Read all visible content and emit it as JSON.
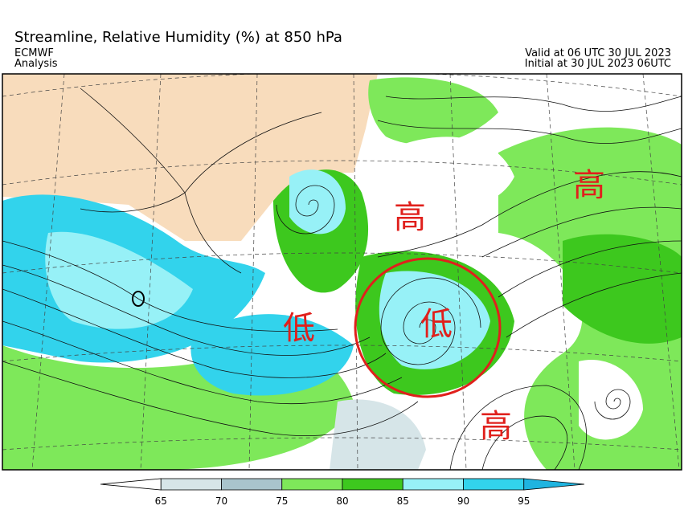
{
  "header": {
    "title": "Streamline, Relative Humidity (%) at 850 hPa",
    "source": "ECMWF",
    "product": "Analysis",
    "valid": "Valid at 06 UTC 30 JUL 2023",
    "initial": "Initial at 30 JUL 2023 06UTC"
  },
  "annotations": [
    {
      "label": "高"
    },
    {
      "label": "高"
    },
    {
      "label": "高"
    },
    {
      "label": "低"
    },
    {
      "label": "低"
    }
  ],
  "colorbar": {
    "ticks": [
      65,
      70,
      75,
      80,
      85,
      90,
      95
    ],
    "colors": [
      "#ffffff",
      "#d6e5e8",
      "#a9c4cc",
      "#7ee85a",
      "#3dc81e",
      "#97f1f7",
      "#32d3ec",
      "#1fb4e0"
    ]
  }
}
